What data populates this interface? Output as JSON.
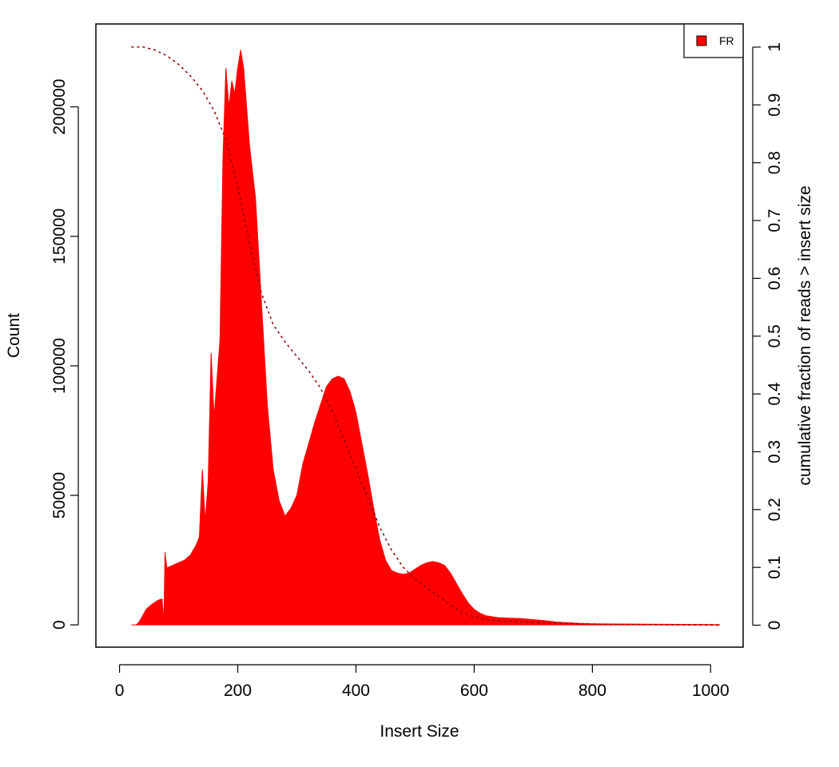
{
  "chart_data": {
    "type": "area",
    "title": "",
    "xlabel": "Insert Size",
    "ylabel": "Count",
    "ylabel_right": "cumulative fraction of reads > insert size",
    "xlim": [
      -40,
      1055
    ],
    "ylim": [
      -8600,
      232000
    ],
    "ylim_right": [
      -0.038,
      1.04
    ],
    "x_ticks": [
      0,
      200,
      400,
      600,
      800,
      1000
    ],
    "x_tick_labels": [
      "0",
      "200",
      "400",
      "600",
      "800",
      "1000"
    ],
    "y_ticks": [
      0,
      50000,
      100000,
      150000,
      200000
    ],
    "y_tick_labels": [
      "0",
      "50000",
      "100000",
      "150000",
      "200000"
    ],
    "y_right_ticks": [
      0,
      0.1,
      0.2,
      0.3,
      0.4,
      0.5,
      0.6,
      0.7,
      0.8,
      0.9,
      1
    ],
    "y_right_tick_labels": [
      "0",
      "0.1",
      "0.2",
      "0.3",
      "0.4",
      "0.5",
      "0.6",
      "0.7",
      "0.8",
      "0.9",
      "1"
    ],
    "grid": false,
    "legend": {
      "position": "top-right",
      "entries": [
        {
          "label": "FR",
          "color": "#ff0000"
        }
      ]
    },
    "series": [
      {
        "name": "FR",
        "color": "#ff0000",
        "style": "filled histogram (counts)",
        "points": [
          [
            20,
            0
          ],
          [
            28,
            0
          ],
          [
            32,
            800
          ],
          [
            38,
            3000
          ],
          [
            45,
            6000
          ],
          [
            55,
            8000
          ],
          [
            65,
            9500
          ],
          [
            72,
            10000
          ],
          [
            75,
            1000
          ],
          [
            77,
            28000
          ],
          [
            80,
            22000
          ],
          [
            90,
            23000
          ],
          [
            100,
            24000
          ],
          [
            110,
            25000
          ],
          [
            120,
            27000
          ],
          [
            130,
            31000
          ],
          [
            135,
            34000
          ],
          [
            140,
            60000
          ],
          [
            145,
            40000
          ],
          [
            150,
            55000
          ],
          [
            155,
            105000
          ],
          [
            160,
            80000
          ],
          [
            165,
            95000
          ],
          [
            170,
            110000
          ],
          [
            175,
            180000
          ],
          [
            180,
            215000
          ],
          [
            185,
            200000
          ],
          [
            190,
            210000
          ],
          [
            195,
            205000
          ],
          [
            200,
            215000
          ],
          [
            205,
            222000
          ],
          [
            210,
            215000
          ],
          [
            215,
            200000
          ],
          [
            220,
            185000
          ],
          [
            225,
            175000
          ],
          [
            230,
            165000
          ],
          [
            240,
            125000
          ],
          [
            250,
            85000
          ],
          [
            260,
            60000
          ],
          [
            270,
            48000
          ],
          [
            280,
            42000
          ],
          [
            290,
            45000
          ],
          [
            300,
            50000
          ],
          [
            310,
            62000
          ],
          [
            320,
            70000
          ],
          [
            330,
            78000
          ],
          [
            340,
            85000
          ],
          [
            350,
            92000
          ],
          [
            360,
            95000
          ],
          [
            370,
            96000
          ],
          [
            380,
            95000
          ],
          [
            390,
            90000
          ],
          [
            400,
            82000
          ],
          [
            410,
            70000
          ],
          [
            420,
            58000
          ],
          [
            430,
            45000
          ],
          [
            440,
            33000
          ],
          [
            450,
            25000
          ],
          [
            460,
            21000
          ],
          [
            470,
            20000
          ],
          [
            480,
            19500
          ],
          [
            490,
            20000
          ],
          [
            500,
            21500
          ],
          [
            510,
            23000
          ],
          [
            520,
            24000
          ],
          [
            530,
            24500
          ],
          [
            540,
            24000
          ],
          [
            550,
            23000
          ],
          [
            560,
            20000
          ],
          [
            570,
            16000
          ],
          [
            580,
            12000
          ],
          [
            590,
            8500
          ],
          [
            600,
            6000
          ],
          [
            610,
            4500
          ],
          [
            620,
            3500
          ],
          [
            640,
            2800
          ],
          [
            660,
            2600
          ],
          [
            680,
            2400
          ],
          [
            700,
            2000
          ],
          [
            720,
            1600
          ],
          [
            740,
            1100
          ],
          [
            760,
            800
          ],
          [
            780,
            600
          ],
          [
            800,
            450
          ],
          [
            830,
            350
          ],
          [
            860,
            300
          ],
          [
            900,
            250
          ],
          [
            950,
            200
          ],
          [
            1000,
            150
          ],
          [
            1015,
            100
          ]
        ]
      },
      {
        "name": "cumulative fraction of reads > insert size",
        "color": "#8b0000",
        "style": "dotted line (right axis)",
        "points": [
          [
            20,
            1.0
          ],
          [
            40,
            1.0
          ],
          [
            60,
            0.995
          ],
          [
            80,
            0.985
          ],
          [
            100,
            0.97
          ],
          [
            120,
            0.95
          ],
          [
            140,
            0.925
          ],
          [
            160,
            0.89
          ],
          [
            180,
            0.84
          ],
          [
            200,
            0.76
          ],
          [
            220,
            0.66
          ],
          [
            240,
            0.575
          ],
          [
            260,
            0.52
          ],
          [
            280,
            0.49
          ],
          [
            300,
            0.465
          ],
          [
            320,
            0.44
          ],
          [
            340,
            0.41
          ],
          [
            360,
            0.37
          ],
          [
            380,
            0.32
          ],
          [
            400,
            0.27
          ],
          [
            420,
            0.22
          ],
          [
            440,
            0.17
          ],
          [
            460,
            0.13
          ],
          [
            480,
            0.1
          ],
          [
            500,
            0.08
          ],
          [
            520,
            0.065
          ],
          [
            540,
            0.05
          ],
          [
            560,
            0.035
          ],
          [
            580,
            0.022
          ],
          [
            600,
            0.014
          ],
          [
            620,
            0.01
          ],
          [
            650,
            0.007
          ],
          [
            700,
            0.005
          ],
          [
            750,
            0.003
          ],
          [
            800,
            0.002
          ],
          [
            900,
            0.001
          ],
          [
            1015,
            0.0
          ]
        ]
      }
    ]
  }
}
